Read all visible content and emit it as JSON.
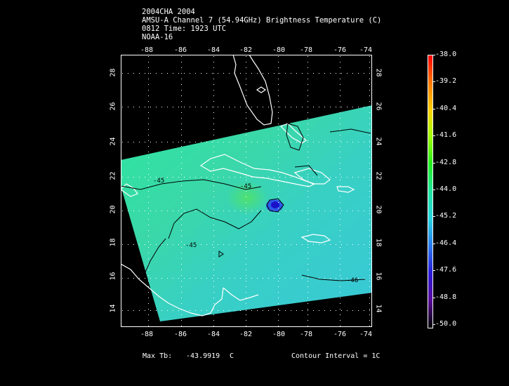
{
  "header": {
    "line1": "2004CHA 2004",
    "line2": "AMSU-A Channel 7 (54.94GHz) Brightness Temperature (C)",
    "line3": "0812 Time: 1923 UTC",
    "line4": "NOAA-16"
  },
  "lon_ticks": [
    "-88",
    "-86",
    "-84",
    "-82",
    "-80",
    "-78",
    "-76",
    "-74"
  ],
  "lat_ticks": [
    "28",
    "26",
    "24",
    "22",
    "20",
    "18",
    "16",
    "14"
  ],
  "contour_labels": [
    "-45",
    "-45",
    "-45",
    "-46"
  ],
  "colorbar": {
    "ticks": [
      "-38.0",
      "-39.2",
      "-40.4",
      "-41.6",
      "-42.8",
      "-44.0",
      "-45.2",
      "-46.4",
      "-47.6",
      "-48.8",
      "-50.0"
    ],
    "colors": [
      "#ff0000",
      "#ff7a00",
      "#ffd000",
      "#9cff00",
      "#22ee22",
      "#20e6a0",
      "#28d4e0",
      "#2a7af0",
      "#2a1ad8",
      "#5a0a9a",
      "#000000"
    ]
  },
  "footer": {
    "max_tb_label": "Max Tb:",
    "max_tb_value": "-43.9919",
    "max_tb_unit": "C",
    "contour_interval": "Contour Interval = 1C"
  }
}
